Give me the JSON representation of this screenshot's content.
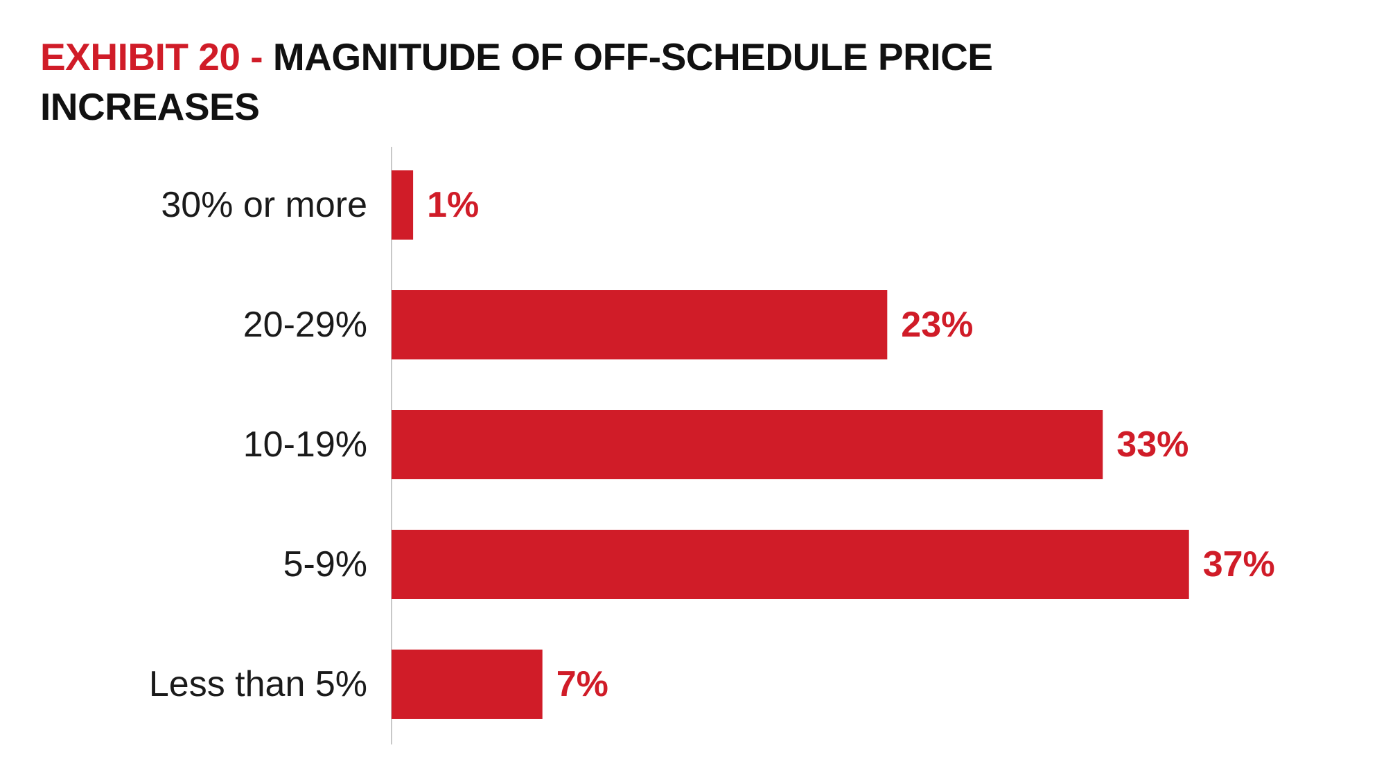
{
  "title": {
    "exhibit": "EXHIBIT 20 -",
    "text": "MAGNITUDE OF OFF-SCHEDULE PRICE INCREASES"
  },
  "colors": {
    "accent": "#d01c28",
    "text": "#1a1a1a",
    "axis": "#c8c8c8"
  },
  "chart_data": {
    "type": "bar",
    "orientation": "horizontal",
    "title": "EXHIBIT 20 - MAGNITUDE OF OFF-SCHEDULE PRICE INCREASES",
    "xlabel": "",
    "ylabel": "",
    "categories": [
      "30% or more",
      "20-29%",
      "10-19%",
      "5-9%",
      "Less than 5%"
    ],
    "values": [
      1,
      23,
      33,
      37,
      7
    ],
    "value_labels": [
      "1%",
      "23%",
      "33%",
      "37%",
      "7%"
    ],
    "xlim": [
      0,
      45
    ],
    "grid": false,
    "legend": "none"
  }
}
